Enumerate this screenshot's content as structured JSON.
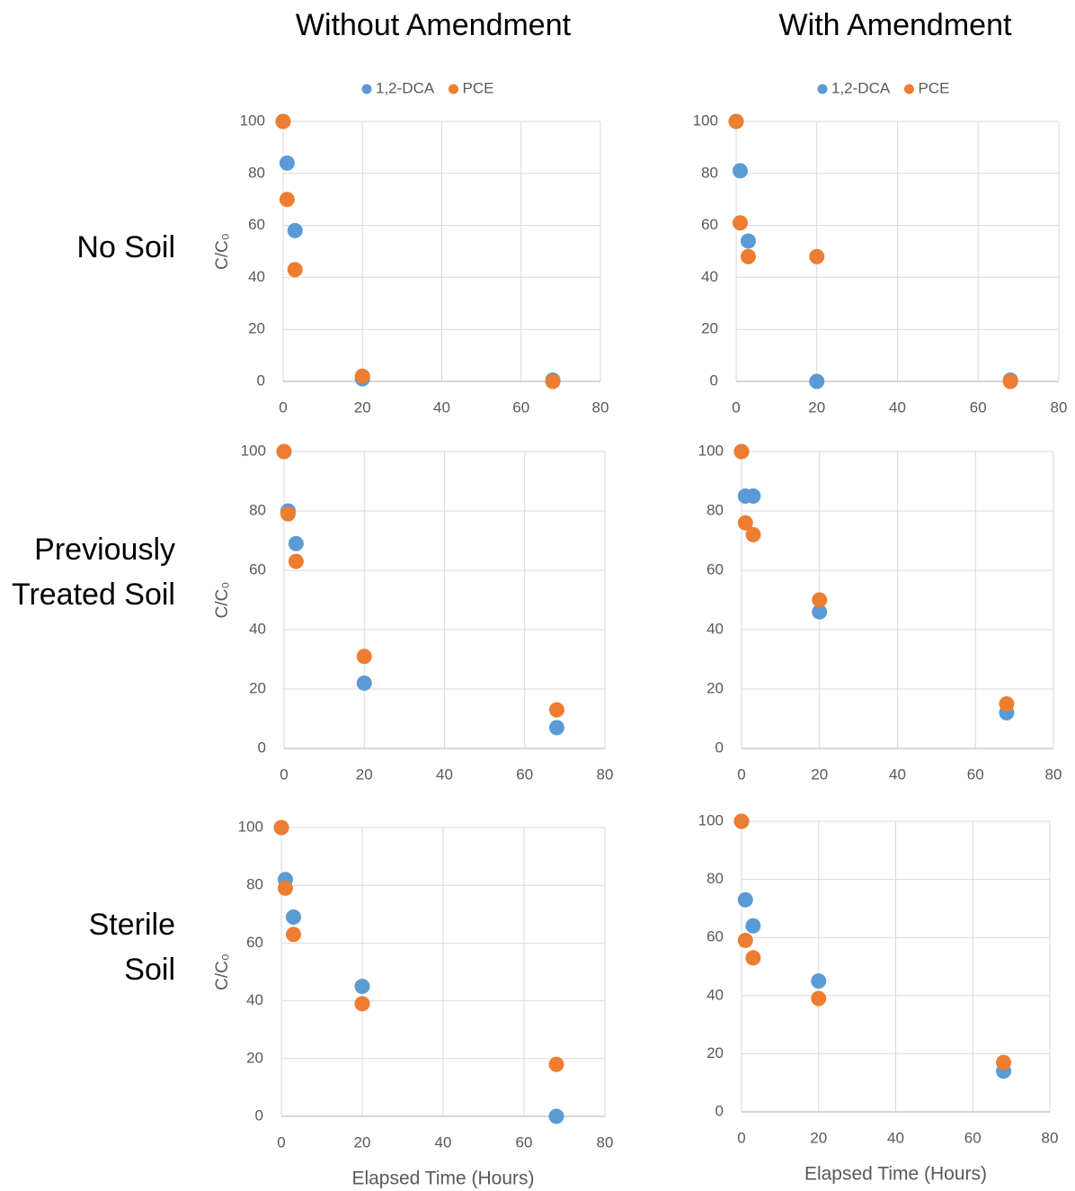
{
  "column_titles": [
    "Without Amendment",
    "With Amendment"
  ],
  "row_labels": [
    [
      "No Soil"
    ],
    [
      "Previously",
      "Treated Soil"
    ],
    [
      "Sterile",
      "Soil"
    ]
  ],
  "chart_data": [
    {
      "type": "scatter",
      "x": [
        0,
        1,
        3,
        20,
        68
      ],
      "ylabel": "C/C₀",
      "legend": "top",
      "series": [
        {
          "name": "1,2-DCA",
          "color": "#5b9bd5",
          "values": [
            100,
            84,
            58,
            1,
            0.5
          ]
        },
        {
          "name": "PCE",
          "color": "#ed7d31",
          "values": [
            100,
            70,
            43,
            2,
            0
          ]
        }
      ],
      "xlim": [
        0,
        80
      ],
      "xticks": [
        0,
        20,
        40,
        60,
        80
      ],
      "ylim": [
        0,
        100
      ],
      "yticks": [
        0,
        20,
        40,
        60,
        80,
        100
      ],
      "grid": true
    },
    {
      "type": "scatter",
      "x": [
        0,
        1,
        3,
        20,
        68
      ],
      "legend": "top",
      "series": [
        {
          "name": "1,2-DCA",
          "color": "#5b9bd5",
          "values": [
            100,
            81,
            54,
            0,
            0.5
          ]
        },
        {
          "name": "PCE",
          "color": "#ed7d31",
          "values": [
            100,
            61,
            48,
            48,
            0
          ]
        }
      ],
      "xlim": [
        0,
        80
      ],
      "xticks": [
        0,
        20,
        40,
        60,
        80
      ],
      "ylim": [
        0,
        100
      ],
      "yticks": [
        0,
        20,
        40,
        60,
        80,
        100
      ],
      "grid": true
    },
    {
      "type": "scatter",
      "x": [
        0,
        1,
        3,
        20,
        68
      ],
      "ylabel": "C/C₀",
      "series": [
        {
          "name": "1,2-DCA",
          "color": "#5b9bd5",
          "values": [
            100,
            80,
            69,
            22,
            7
          ]
        },
        {
          "name": "PCE",
          "color": "#ed7d31",
          "values": [
            100,
            79,
            63,
            31,
            13
          ]
        }
      ],
      "xlim": [
        0,
        80
      ],
      "xticks": [
        0,
        20,
        40,
        60,
        80
      ],
      "ylim": [
        0,
        100
      ],
      "yticks": [
        0,
        20,
        40,
        60,
        80,
        100
      ],
      "grid": true
    },
    {
      "type": "scatter",
      "x": [
        0,
        1,
        3,
        20,
        68
      ],
      "series": [
        {
          "name": "1,2-DCA",
          "color": "#5b9bd5",
          "values": [
            100,
            85,
            85,
            46,
            12
          ]
        },
        {
          "name": "PCE",
          "color": "#ed7d31",
          "values": [
            100,
            76,
            72,
            50,
            15
          ]
        }
      ],
      "xlim": [
        0,
        80
      ],
      "xticks": [
        0,
        20,
        40,
        60,
        80
      ],
      "ylim": [
        0,
        100
      ],
      "yticks": [
        0,
        20,
        40,
        60,
        80,
        100
      ],
      "grid": true
    },
    {
      "type": "scatter",
      "x": [
        0,
        1,
        3,
        20,
        68
      ],
      "ylabel": "C/C₀",
      "xlabel": "Elapsed Time (Hours)",
      "series": [
        {
          "name": "1,2-DCA",
          "color": "#5b9bd5",
          "values": [
            100,
            82,
            69,
            45,
            0
          ]
        },
        {
          "name": "PCE",
          "color": "#ed7d31",
          "values": [
            100,
            79,
            63,
            39,
            18
          ]
        }
      ],
      "xlim": [
        0,
        80
      ],
      "xticks": [
        0,
        20,
        40,
        60,
        80
      ],
      "ylim": [
        0,
        100
      ],
      "yticks": [
        0,
        20,
        40,
        60,
        80,
        100
      ],
      "grid": true
    },
    {
      "type": "scatter",
      "x": [
        0,
        1,
        3,
        20,
        68
      ],
      "xlabel": "Elapsed Time (Hours)",
      "series": [
        {
          "name": "1,2-DCA",
          "color": "#5b9bd5",
          "values": [
            100,
            73,
            64,
            45,
            14
          ]
        },
        {
          "name": "PCE",
          "color": "#ed7d31",
          "values": [
            100,
            59,
            53,
            39,
            17
          ]
        }
      ],
      "xlim": [
        0,
        80
      ],
      "xticks": [
        0,
        20,
        40,
        60,
        80
      ],
      "ylim": [
        0,
        100
      ],
      "yticks": [
        0,
        20,
        40,
        60,
        80,
        100
      ],
      "grid": true
    }
  ]
}
